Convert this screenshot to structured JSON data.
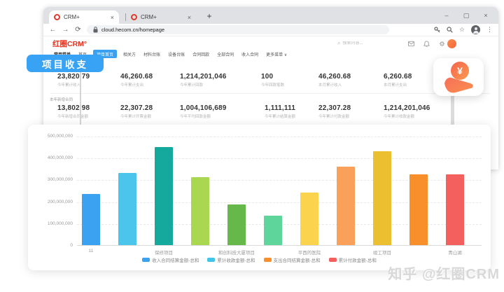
{
  "browser": {
    "tabs": [
      {
        "title": "CRM+"
      },
      {
        "title": "CRM+"
      }
    ],
    "new_tab": "+",
    "tab_close": "×",
    "controls": {
      "minimize": "–",
      "maximize": "▢",
      "close": "×"
    },
    "nav": {
      "back": "←",
      "forward": "→",
      "reload": "⟳"
    },
    "url": "cloud.hecom.cn/homepage",
    "addr_icons": {
      "key": "⚷",
      "zoom": "🔍",
      "star": "☆",
      "menu": "⋮"
    }
  },
  "crm": {
    "logo": "红圈CRM°",
    "search_placeholder": "搜索内容...",
    "search_icon": "⌕",
    "nav_items": [
      {
        "label": "常用菜单"
      },
      {
        "label": "首页"
      },
      {
        "label": "项目首页",
        "active": true
      },
      {
        "label": "相关方"
      },
      {
        "label": "材料台账"
      },
      {
        "label": "设备台账"
      },
      {
        "label": "合同回款"
      },
      {
        "label": "全部合同"
      },
      {
        "label": "收入合同"
      },
      {
        "label": "更多菜单 ∨"
      }
    ],
    "stats_row1": [
      {
        "value": "23,820.79",
        "label": "今年累计收入"
      },
      {
        "value": "46,260.68",
        "label": "今年累计支出"
      },
      {
        "value": "1,214,201,046",
        "label": "今年累计回款"
      },
      {
        "value": "100",
        "label": "今年回款笔数"
      },
      {
        "value": "46,260.68",
        "label": "本月累计收入"
      },
      {
        "value": "6,260.68",
        "label": "本月累计支出"
      }
    ],
    "section_title": "本年新增合同",
    "stats_row2": [
      {
        "value": "13,802.98",
        "label": "今年新增合同金额"
      },
      {
        "value": "22,307.28",
        "label": "今年累计开票金额"
      },
      {
        "value": "1,004,106,689",
        "label": "今年平均回款金额"
      },
      {
        "value": "1,111,111",
        "label": "今年累计结算金额"
      },
      {
        "value": "22,307.28",
        "label": "今年累计付款金额"
      },
      {
        "value": "1,214,201,046",
        "label": "今年累计收款金额"
      }
    ]
  },
  "callout_badge": "项目收支",
  "chart_data": {
    "type": "bar",
    "title": "项目收支",
    "ylim": [
      0,
      500000000
    ],
    "y_ticks": [
      "500,000,000",
      "400,000,000",
      "300,000,000",
      "200,000,000",
      "100,000,000",
      "0"
    ],
    "grid": "horizontal-dashed",
    "legend_position": "bottom",
    "bars": [
      {
        "category": "11",
        "value": 235000000,
        "color": "#3ba1f1"
      },
      {
        "category": "",
        "value": 330000000,
        "color": "#4cc5ec"
      },
      {
        "category": "保修项目",
        "value": 450000000,
        "color": "#14a99c"
      },
      {
        "category": "",
        "value": 310000000,
        "color": "#a9d850"
      },
      {
        "category": "和创科技大厦项目",
        "value": 185000000,
        "color": "#67b84b"
      },
      {
        "category": "",
        "value": 135000000,
        "color": "#5ed69b"
      },
      {
        "category": "平西的医院",
        "value": 240000000,
        "color": "#fbd34c"
      },
      {
        "category": "",
        "value": 360000000,
        "color": "#f9a05b"
      },
      {
        "category": "竣工项目",
        "value": 430000000,
        "color": "#ecbf31"
      },
      {
        "category": "",
        "value": 325000000,
        "color": "#f98f2b"
      },
      {
        "category": "青山湖",
        "value": 325000000,
        "color": "#f4605e"
      }
    ],
    "legend": [
      {
        "label": "收入合同结算金额-总和",
        "color": "#3ba1f1"
      },
      {
        "label": "累计收款金额-总和",
        "color": "#45c4ea"
      },
      {
        "label": "支出合同结算金额-总和",
        "color": "#f98f2b"
      },
      {
        "label": "累计付款金额-总和",
        "color": "#f4605e"
      }
    ]
  },
  "watermark": "知乎 @红圈CRM"
}
